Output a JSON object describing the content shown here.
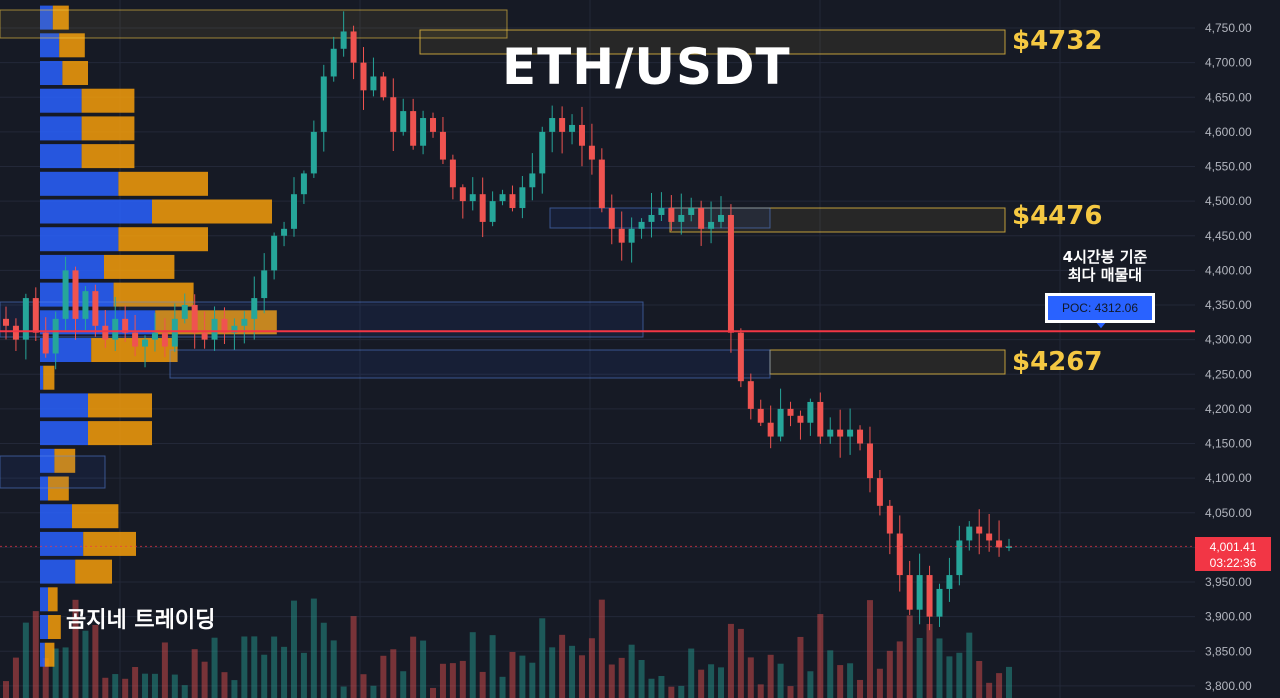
{
  "title": "ETH/USDT",
  "brand": "곰지네 트레이딩",
  "levels": {
    "top": "$4732",
    "mid": "$4476",
    "low": "$4267"
  },
  "poc_note": {
    "line1": "4시간봉 기준",
    "line2": "최다 매물대"
  },
  "poc_label": "POC: 4312.06",
  "last_price": {
    "value": "4,001.41",
    "countdown": "03:22:36"
  },
  "colors": {
    "background": "#161a25",
    "up": "#26a69a",
    "down": "#ef5350",
    "vp_buy": "#2962ff",
    "vp_sell": "#f59e0b",
    "poc_line": "#f23645",
    "level_box": "#f5c842"
  },
  "chart_data": {
    "type": "candlestick",
    "title": "ETH/USDT",
    "y_axis": {
      "range": [
        3790,
        4775
      ],
      "ticks": [
        "4,750.00",
        "4,700.00",
        "4,650.00",
        "4,600.00",
        "4,550.00",
        "4,500.00",
        "4,450.00",
        "4,400.00",
        "4,350.00",
        "4,300.00",
        "4,250.00",
        "4,200.00",
        "4,150.00",
        "4,100.00",
        "4,050.00",
        "4,000.00",
        "3,950.00",
        "3,900.00",
        "3,850.00",
        "3,800.00"
      ]
    },
    "grid": true,
    "poc": 4312.06,
    "last_price": 4001.41,
    "price_levels": [
      4732,
      4476,
      4267
    ],
    "volume_profile": [
      {
        "price": 4765,
        "buy": 8,
        "sell": 10
      },
      {
        "price": 4725,
        "buy": 12,
        "sell": 16
      },
      {
        "price": 4685,
        "buy": 14,
        "sell": 16
      },
      {
        "price": 4645,
        "buy": 26,
        "sell": 33
      },
      {
        "price": 4605,
        "buy": 26,
        "sell": 33
      },
      {
        "price": 4565,
        "buy": 26,
        "sell": 33
      },
      {
        "price": 4525,
        "buy": 49,
        "sell": 56
      },
      {
        "price": 4485,
        "buy": 70,
        "sell": 75
      },
      {
        "price": 4445,
        "buy": 49,
        "sell": 56
      },
      {
        "price": 4405,
        "buy": 40,
        "sell": 44
      },
      {
        "price": 4365,
        "buy": 46,
        "sell": 50
      },
      {
        "price": 4325,
        "buy": 72,
        "sell": 76
      },
      {
        "price": 4285,
        "buy": 32,
        "sell": 54
      },
      {
        "price": 4245,
        "buy": 2,
        "sell": 7
      },
      {
        "price": 4205,
        "buy": 30,
        "sell": 40
      },
      {
        "price": 4165,
        "buy": 30,
        "sell": 40
      },
      {
        "price": 4125,
        "buy": 9,
        "sell": 13
      },
      {
        "price": 4085,
        "buy": 5,
        "sell": 13
      },
      {
        "price": 4045,
        "buy": 20,
        "sell": 29
      },
      {
        "price": 4005,
        "buy": 27,
        "sell": 33
      },
      {
        "price": 3965,
        "buy": 22,
        "sell": 23
      },
      {
        "price": 3925,
        "buy": 5,
        "sell": 6
      },
      {
        "price": 3885,
        "buy": 5,
        "sell": 8
      },
      {
        "price": 3845,
        "buy": 3,
        "sell": 6
      }
    ],
    "close_path": [
      4320,
      4300,
      4360,
      4310,
      4280,
      4330,
      4400,
      4330,
      4370,
      4320,
      4300,
      4330,
      4310,
      4290,
      4300,
      4310,
      4290,
      4330,
      4350,
      4310,
      4300,
      4330,
      4310,
      4320,
      4330,
      4360,
      4400,
      4450,
      4460,
      4510,
      4540,
      4600,
      4680,
      4720,
      4745,
      4700,
      4660,
      4680,
      4650,
      4600,
      4630,
      4580,
      4620,
      4600,
      4560,
      4520,
      4500,
      4510,
      4470,
      4500,
      4510,
      4490,
      4520,
      4540,
      4600,
      4620,
      4600,
      4610,
      4580,
      4560,
      4490,
      4460,
      4440,
      4460,
      4470,
      4480,
      4490,
      4470,
      4480,
      4490,
      4460,
      4470,
      4480,
      4310,
      4240,
      4200,
      4180,
      4160,
      4200,
      4190,
      4180,
      4210,
      4160,
      4170,
      4160,
      4170,
      4150,
      4100,
      4060,
      4020,
      3960,
      3910,
      3960,
      3900,
      3940,
      3960,
      4010,
      4030,
      4020,
      4010,
      4000,
      4001.41
    ]
  }
}
